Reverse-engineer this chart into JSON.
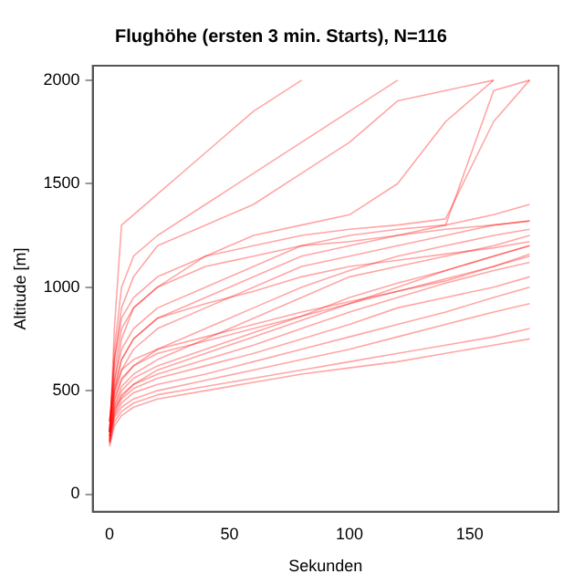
{
  "chart_data": {
    "type": "line",
    "title": "Flughöhe (ersten 3 min. Starts), N=116",
    "xlabel": "Sekunden",
    "ylabel": "Altitude [m]",
    "x": [
      0,
      2,
      5,
      10,
      20,
      40,
      60,
      80,
      100,
      120,
      140,
      160,
      175
    ],
    "xlim": [
      -7,
      187
    ],
    "xticks": [
      0,
      50,
      100,
      150
    ],
    "ylim": [
      -85,
      2070
    ],
    "yticks": [
      0,
      500,
      1000,
      1500,
      2000
    ],
    "grid": false,
    "legend": false,
    "marker": "none",
    "line_style": "solid",
    "series": [
      {
        "color": "#ff0000",
        "values": [
          250,
          800,
          1300,
          1350,
          1450,
          1650,
          1850,
          2000,
          null,
          null,
          null,
          null,
          null
        ]
      },
      {
        "color": "#ff0000",
        "values": [
          300,
          700,
          1000,
          1150,
          1250,
          1400,
          1550,
          1700,
          1850,
          2000,
          null,
          null,
          null
        ]
      },
      {
        "color": "#ff0000",
        "values": [
          300,
          650,
          900,
          1050,
          1200,
          1300,
          1400,
          1550,
          1700,
          1900,
          1950,
          2000,
          null
        ]
      },
      {
        "color": "#ff0000",
        "values": [
          350,
          600,
          800,
          900,
          1000,
          1150,
          1250,
          1300,
          1350,
          1500,
          1800,
          2000,
          null
        ]
      },
      {
        "color": "#ff0000",
        "values": [
          300,
          550,
          700,
          800,
          900,
          1000,
          1100,
          1200,
          1250,
          1280,
          1300,
          1950,
          2000
        ]
      },
      {
        "color": "#ff0000",
        "values": [
          350,
          500,
          650,
          750,
          850,
          950,
          1050,
          1150,
          1200,
          1250,
          1300,
          1350,
          1400
        ]
      },
      {
        "color": "#ff0000",
        "values": [
          300,
          480,
          600,
          700,
          800,
          900,
          1000,
          1100,
          1150,
          1200,
          1250,
          1300,
          1320
        ]
      },
      {
        "color": "#ff0000",
        "values": [
          300,
          450,
          550,
          620,
          700,
          800,
          900,
          1000,
          1080,
          1150,
          1200,
          1250,
          1280
        ]
      },
      {
        "color": "#ff0000",
        "values": [
          280,
          430,
          520,
          580,
          650,
          750,
          850,
          950,
          1050,
          1100,
          1150,
          1200,
          1250
        ]
      },
      {
        "color": "#ff0000",
        "values": [
          280,
          420,
          500,
          560,
          620,
          700,
          780,
          860,
          950,
          1020,
          1080,
          1150,
          1200
        ]
      },
      {
        "color": "#ff0000",
        "values": [
          270,
          400,
          480,
          530,
          580,
          650,
          720,
          800,
          880,
          950,
          1020,
          1080,
          1120
        ]
      },
      {
        "color": "#ff0000",
        "values": [
          260,
          390,
          460,
          510,
          560,
          620,
          680,
          750,
          820,
          900,
          950,
          1000,
          1050
        ]
      },
      {
        "color": "#ff0000",
        "values": [
          250,
          380,
          440,
          490,
          530,
          580,
          640,
          700,
          760,
          820,
          880,
          950,
          1000
        ]
      },
      {
        "color": "#ff0000",
        "values": [
          250,
          370,
          420,
          460,
          500,
          550,
          600,
          650,
          700,
          760,
          820,
          880,
          920
        ]
      },
      {
        "color": "#ff0000",
        "values": [
          240,
          350,
          400,
          440,
          480,
          520,
          560,
          600,
          640,
          680,
          720,
          760,
          800
        ]
      },
      {
        "color": "#ff0000",
        "values": [
          230,
          330,
          380,
          420,
          460,
          500,
          540,
          580,
          610,
          640,
          680,
          720,
          750
        ]
      },
      {
        "color": "#ff0000",
        "values": [
          350,
          550,
          750,
          900,
          1000,
          1100,
          1150,
          1200,
          1220,
          1250,
          1280,
          1300,
          1320
        ]
      },
      {
        "color": "#ff0000",
        "values": [
          320,
          520,
          650,
          750,
          850,
          920,
          980,
          1050,
          1100,
          1130,
          1160,
          1190,
          1220
        ]
      },
      {
        "color": "#ff0000",
        "values": [
          300,
          500,
          600,
          650,
          700,
          760,
          820,
          880,
          930,
          980,
          1030,
          1100,
          1150
        ]
      },
      {
        "color": "#ff0000",
        "values": [
          300,
          650,
          850,
          950,
          1050,
          1150,
          1200,
          1250,
          1280,
          1300,
          1330,
          1800,
          2000
        ]
      },
      {
        "color": "#ff0000",
        "values": [
          280,
          460,
          560,
          620,
          680,
          740,
          800,
          860,
          920,
          980,
          1040,
          1100,
          1160
        ]
      },
      {
        "color": "#ff0000",
        "values": [
          260,
          410,
          470,
          530,
          600,
          680,
          760,
          840,
          920,
          1000,
          1080,
          1150,
          1200
        ]
      }
    ]
  }
}
